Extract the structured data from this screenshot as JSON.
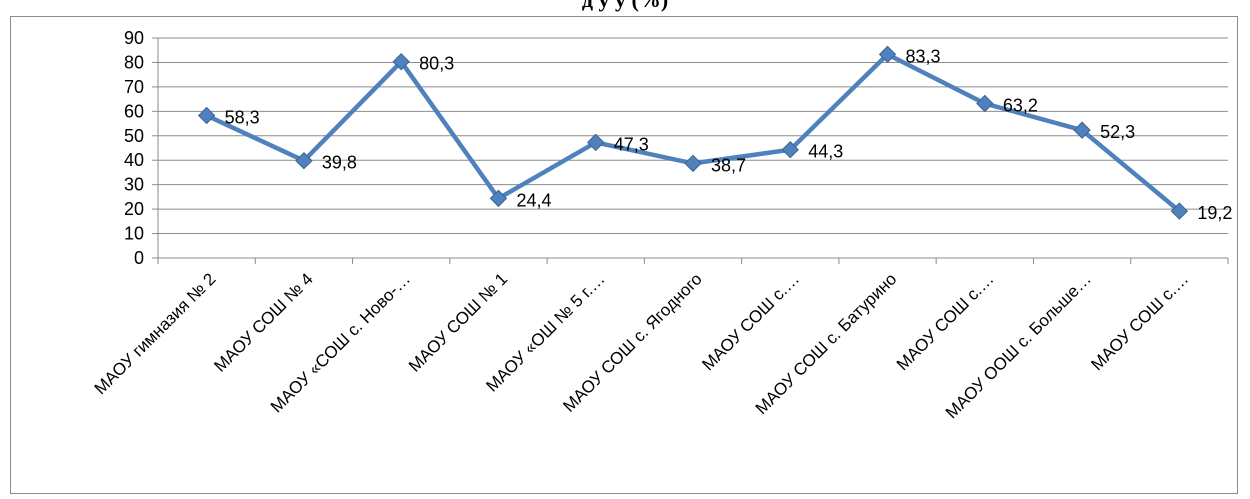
{
  "chart_data": {
    "type": "line",
    "title": "",
    "xlabel": "",
    "ylabel": "",
    "categories": [
      "МАОУ гимназия № 2",
      "МАОУ СОШ № 4",
      "МАОУ «СОШ с. Ново-…",
      "МАОУ СОШ № 1",
      "МАОУ «ОШ № 5 г.…",
      "МАОУ СОШ с. Ягодного",
      "МАОУ СОШ с.…",
      "МАОУ СОШ с. Батурино",
      "МАОУ СОШ с.…",
      "МАОУ ООШ с. Больше…",
      "МАОУ СОШ с.…"
    ],
    "series": [
      {
        "values": [
          58.3,
          39.8,
          80.3,
          24.4,
          47.3,
          38.7,
          44.3,
          83.3,
          63.2,
          52.3,
          19.2
        ],
        "labels": [
          "58,3",
          "39,8",
          "80,3",
          "24,4",
          "47,3",
          "38,7",
          "44,3",
          "83,3",
          "63,2",
          "52,3",
          "19,2"
        ],
        "color": "#4f81bd"
      }
    ],
    "ylim": [
      0,
      90
    ],
    "yticks": [
      0,
      10,
      20,
      30,
      40,
      50,
      60,
      70,
      80,
      90
    ],
    "ytick_labels": [
      "0",
      "10",
      "20",
      "30",
      "40",
      "50",
      "60",
      "70",
      "80",
      "90"
    ],
    "grid": true,
    "legend": "none"
  },
  "title_fragment": "д       у        у                                   (%)",
  "colors": {
    "line": "#4f81bd",
    "grid": "#8c8c8c",
    "axis": "#8c8c8c"
  }
}
